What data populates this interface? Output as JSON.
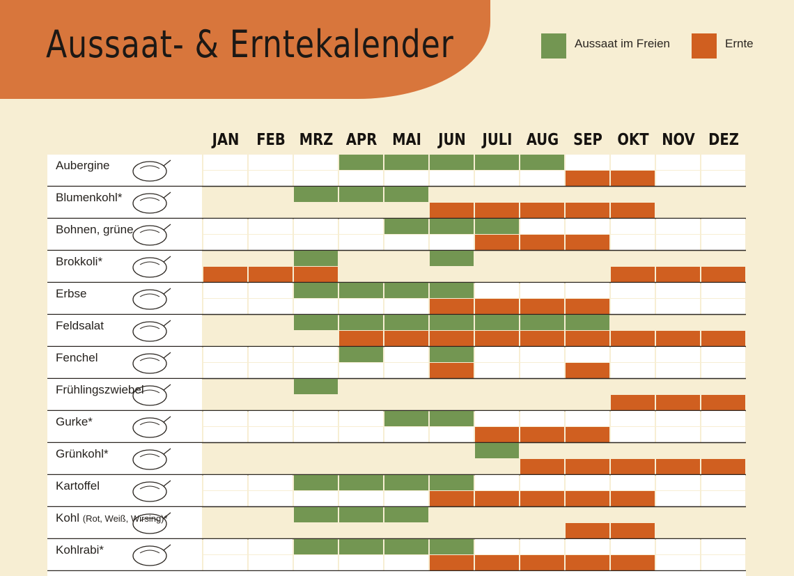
{
  "title": "Aussaat- & Erntekalender",
  "legend": {
    "sow": {
      "label": "Aussaat im Freien",
      "color": "#739652"
    },
    "harvest": {
      "label": "Ernte",
      "color": "#d05f20"
    }
  },
  "chart_data": {
    "type": "table",
    "months": [
      "JAN",
      "FEB",
      "MRZ",
      "APR",
      "MAI",
      "JUN",
      "JULI",
      "AUG",
      "SEP",
      "OKT",
      "NOV",
      "DEZ"
    ],
    "rows": [
      {
        "name": "Aubergine",
        "sub": "",
        "icon": "eggplant-icon",
        "sow": [
          4,
          5,
          6,
          7,
          8
        ],
        "harvest": [
          9,
          10
        ]
      },
      {
        "name": "Blumenkohl*",
        "sub": "",
        "icon": "cauliflower-icon",
        "sow": [
          3,
          4,
          5
        ],
        "harvest": [
          6,
          7,
          8,
          9,
          10
        ]
      },
      {
        "name": "Bohnen, grüne",
        "sub": "",
        "icon": "bean-pod-icon",
        "sow": [
          5,
          6,
          7
        ],
        "harvest": [
          7,
          8,
          9
        ]
      },
      {
        "name": "Brokkoli*",
        "sub": "",
        "icon": "broccoli-icon",
        "sow": [
          3,
          6
        ],
        "harvest": [
          1,
          2,
          3,
          10,
          11,
          12
        ]
      },
      {
        "name": "Erbse",
        "sub": "",
        "icon": "pea-pod-icon",
        "sow": [
          3,
          4,
          5,
          6
        ],
        "harvest": [
          6,
          7,
          8,
          9
        ]
      },
      {
        "name": "Feldsalat",
        "sub": "",
        "icon": "lamb-lettuce-icon",
        "sow": [
          3,
          4,
          5,
          6,
          7,
          8,
          9
        ],
        "harvest": [
          4,
          5,
          6,
          7,
          8,
          9,
          10,
          11,
          12
        ]
      },
      {
        "name": "Fenchel",
        "sub": "",
        "icon": "fennel-icon",
        "sow": [
          4,
          6
        ],
        "harvest": [
          6,
          9
        ]
      },
      {
        "name": "Frühlingszwiebel",
        "sub": "",
        "icon": "spring-onion-icon",
        "sow": [
          3
        ],
        "harvest": [
          10,
          11,
          12
        ]
      },
      {
        "name": "Gurke*",
        "sub": "",
        "icon": "cucumber-icon",
        "sow": [
          5,
          6
        ],
        "harvest": [
          7,
          8,
          9
        ]
      },
      {
        "name": "Grünkohl*",
        "sub": "",
        "icon": "kale-icon",
        "sow": [
          7
        ],
        "harvest": [
          8,
          9,
          10,
          11,
          12
        ]
      },
      {
        "name": "Kartoffel",
        "sub": "",
        "icon": "potato-icon",
        "sow": [
          3,
          4,
          5,
          6
        ],
        "harvest": [
          6,
          7,
          8,
          9,
          10
        ]
      },
      {
        "name": "Kohl ",
        "sub": "(Rot, Weiß, Wirsing)*",
        "icon": "cabbage-icon",
        "sow": [
          3,
          4,
          5
        ],
        "harvest": [
          9,
          10
        ]
      },
      {
        "name": "Kohlrabi*",
        "sub": "",
        "icon": "kohlrabi-icon",
        "sow": [
          3,
          4,
          5,
          6
        ],
        "harvest": [
          6,
          7,
          8,
          9,
          10
        ]
      }
    ]
  }
}
